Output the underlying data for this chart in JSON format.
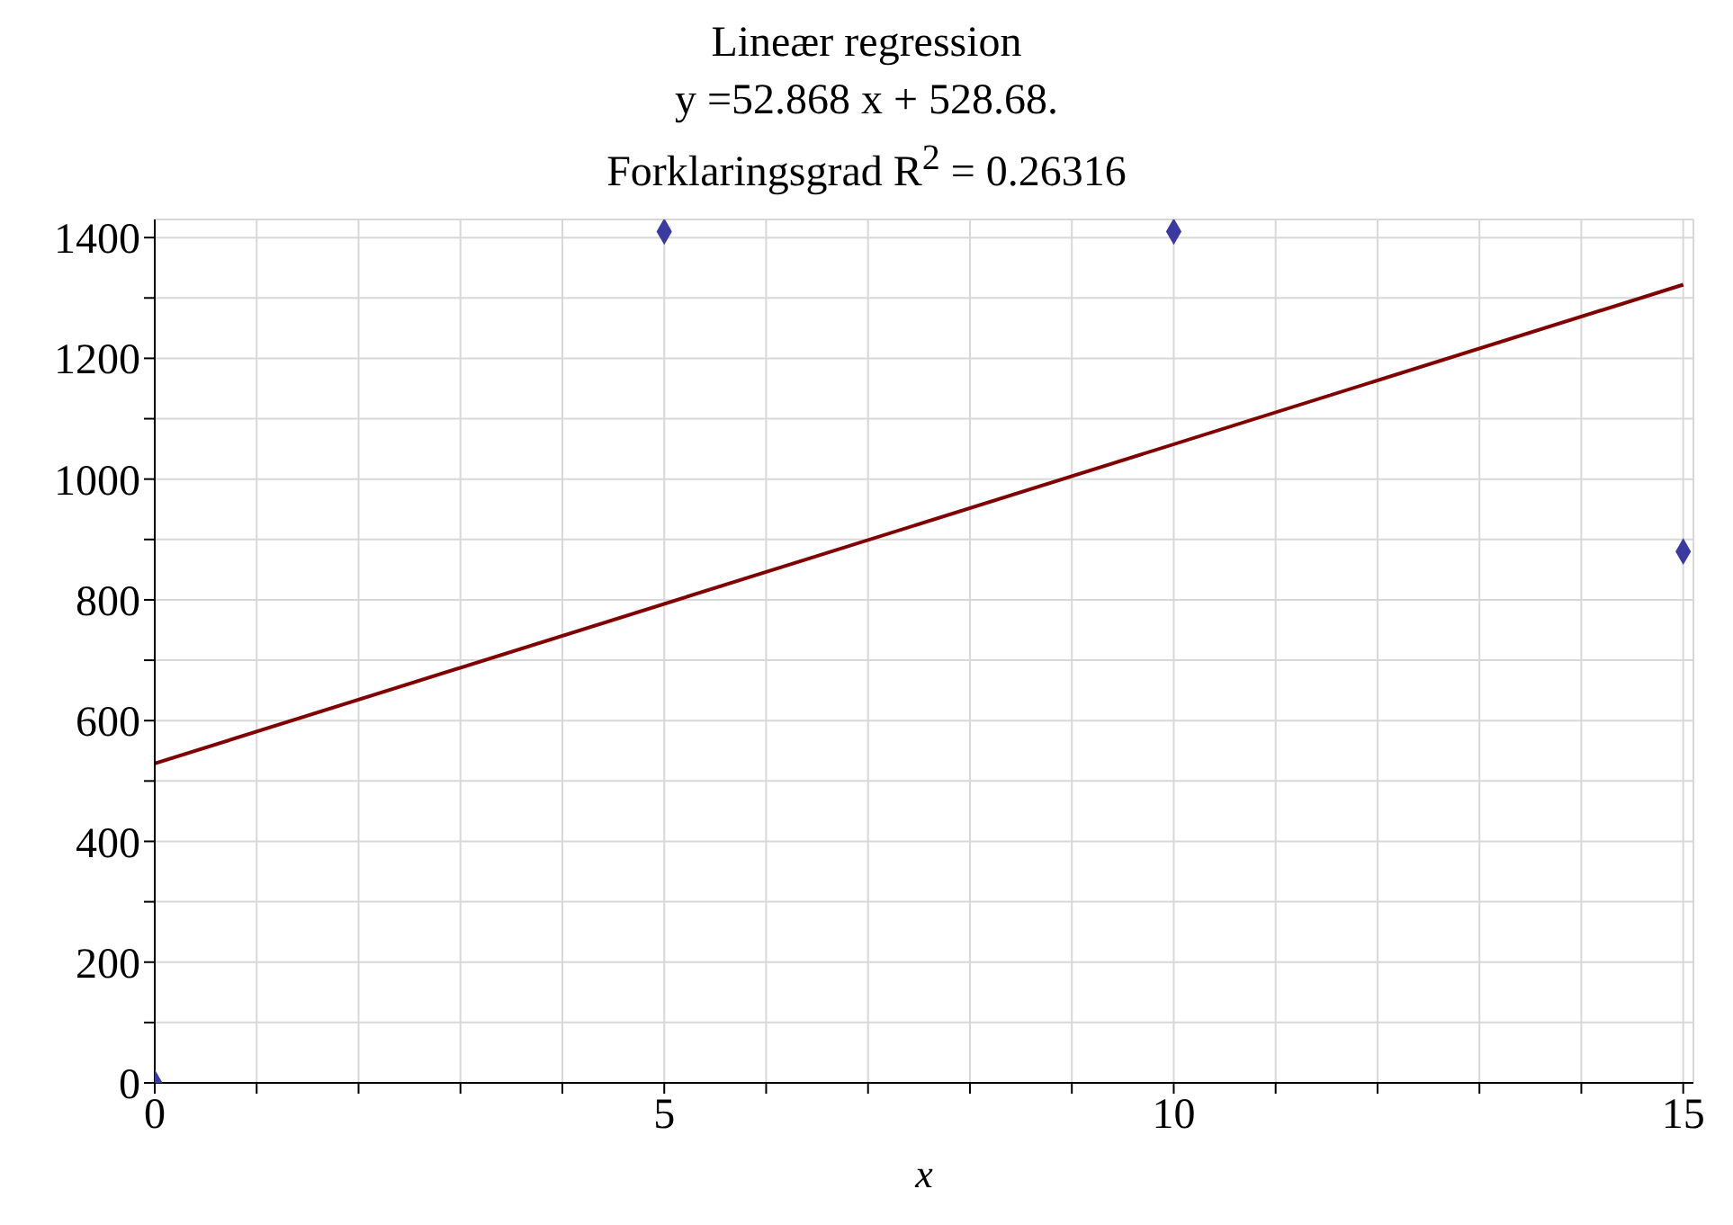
{
  "chart_data": {
    "type": "scatter",
    "title": "Lineær regression",
    "subtitle": "y =52.868 x + 528.68.\nForklaringsgrad R$^{2}$ = 0.26316",
    "xlabel": "x",
    "xlim": [
      0,
      15.1
    ],
    "ylim": [
      0,
      1430
    ],
    "xticks": [
      0,
      {
        "value": 1,
        "label": null
      },
      {
        "value": 2,
        "label": null
      },
      {
        "value": 3,
        "label": null
      },
      {
        "value": 4,
        "label": null
      },
      5,
      {
        "value": 6,
        "label": null
      },
      {
        "value": 7,
        "label": null
      },
      {
        "value": 8,
        "label": null
      },
      {
        "value": 9,
        "label": null
      },
      10,
      {
        "value": 11,
        "label": null
      },
      {
        "value": 12,
        "label": null
      },
      {
        "value": 13,
        "label": null
      },
      {
        "value": 14,
        "label": null
      },
      15
    ],
    "yticks": [
      0,
      {
        "value": 100,
        "label": null
      },
      200,
      {
        "value": 300,
        "label": null
      },
      400,
      {
        "value": 500,
        "label": null
      },
      600,
      {
        "value": 700,
        "label": null
      },
      800,
      {
        "value": 900,
        "label": null
      },
      1000,
      {
        "value": 1100,
        "label": null
      },
      1200,
      {
        "value": 1300,
        "label": null
      },
      1400
    ],
    "grid": true,
    "legend": false,
    "series": [
      {
        "color": "#3a3aa0",
        "marker": "diamond",
        "x": [
          0,
          5,
          10,
          15
        ],
        "values": [
          0,
          1410,
          1410,
          880
        ]
      },
      {
        "type": "line",
        "color": "#800000",
        "marker": "none",
        "line_style": "solid",
        "x": [
          0,
          15
        ],
        "values": [
          529,
          1322
        ]
      }
    ]
  }
}
